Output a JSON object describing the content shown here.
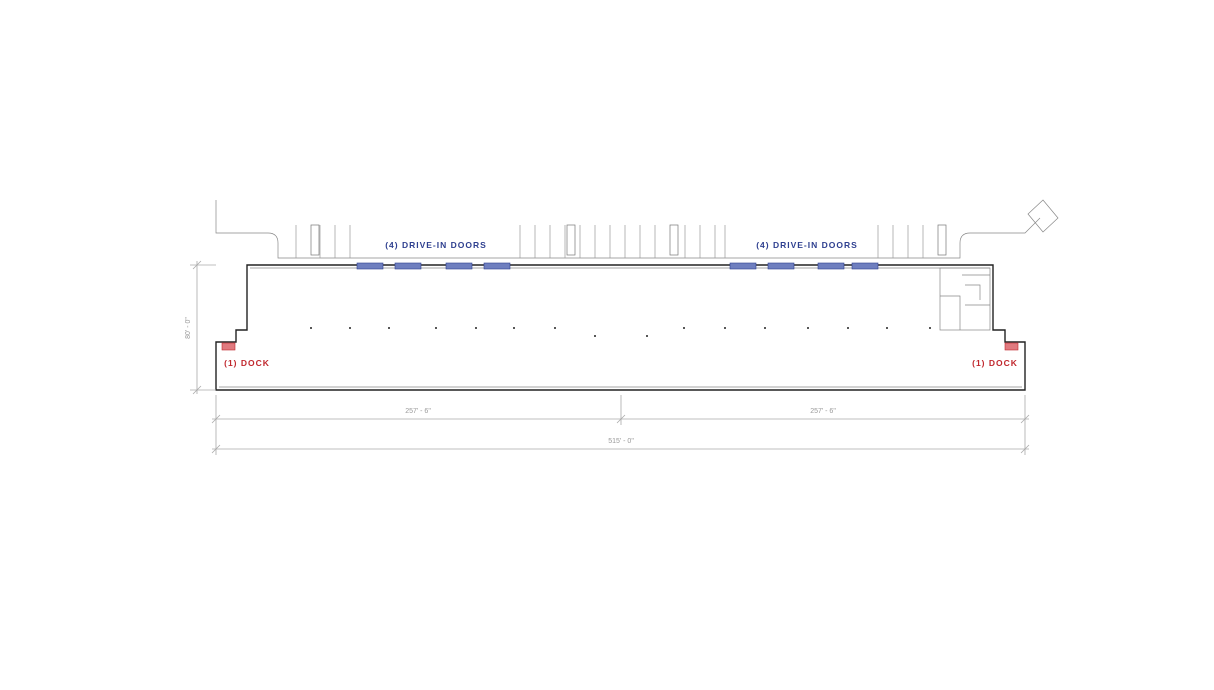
{
  "callouts": {
    "drive_in_doors": [
      "(4) DRIVE-IN DOORS",
      "(4) DRIVE-IN DOORS"
    ],
    "docks": [
      "(1) DOCK",
      "(1) DOCK"
    ]
  },
  "dimensions": {
    "left_half": "257' - 6\"",
    "right_half": "257' - 6\"",
    "overall_width": "515' - 0\"",
    "depth": "80' - 0\""
  }
}
